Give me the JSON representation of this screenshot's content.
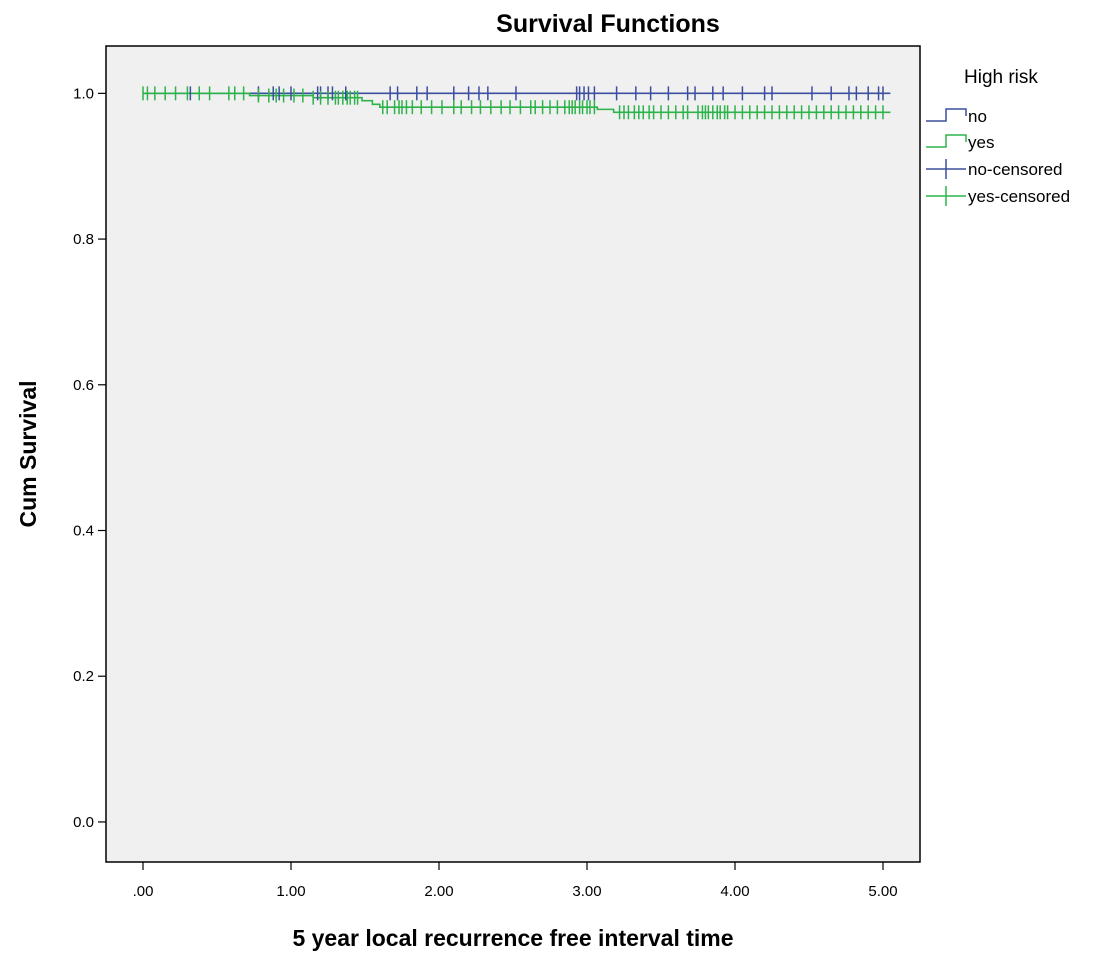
{
  "chart_data": {
    "type": "line",
    "title": "Survival Functions",
    "xlabel": "5 year local recurrence free interval time",
    "ylabel": "Cum Survival",
    "xlim": [
      -0.25,
      5.25
    ],
    "ylim": [
      -0.055,
      1.065
    ],
    "x_ticks": [
      0,
      1,
      2,
      3,
      4,
      5
    ],
    "x_tick_labels": [
      ".00",
      "1.00",
      "2.00",
      "3.00",
      "4.00",
      "5.00"
    ],
    "y_ticks": [
      0,
      0.2,
      0.4,
      0.6,
      0.8,
      1.0
    ],
    "y_tick_labels": [
      "0.0",
      "0.2",
      "0.4",
      "0.6",
      "0.8",
      "1.0"
    ],
    "grid": false,
    "legend": {
      "title": "High risk",
      "position": "right",
      "entries": [
        {
          "label": "no",
          "kind": "step",
          "color": "#3b4f9e"
        },
        {
          "label": "yes",
          "kind": "step",
          "color": "#2db34a"
        },
        {
          "label": "no-censored",
          "kind": "cross",
          "color": "#3b4f9e"
        },
        {
          "label": "yes-censored",
          "kind": "cross",
          "color": "#2db34a"
        }
      ]
    },
    "series": [
      {
        "name": "no",
        "color": "#3b4f9e",
        "steps": [
          [
            0,
            1.0
          ],
          [
            5.05,
            1.0
          ]
        ],
        "censored": [
          0.32,
          0.78,
          0.88,
          0.92,
          1.0,
          1.18,
          1.2,
          1.25,
          1.28,
          1.37,
          1.67,
          1.72,
          1.85,
          1.92,
          2.1,
          2.2,
          2.27,
          2.33,
          2.52,
          2.93,
          2.95,
          2.98,
          3.01,
          3.05,
          3.2,
          3.33,
          3.43,
          3.55,
          3.68,
          3.73,
          3.85,
          3.92,
          4.05,
          4.2,
          4.25,
          4.52,
          4.65,
          4.77,
          4.82,
          4.9,
          4.97,
          5.0
        ]
      },
      {
        "name": "yes",
        "color": "#2db34a",
        "steps": [
          [
            0,
            1.0
          ],
          [
            0.72,
            0.997
          ],
          [
            1.15,
            0.994
          ],
          [
            1.48,
            0.99
          ],
          [
            1.55,
            0.985
          ],
          [
            1.6,
            0.981
          ],
          [
            3.07,
            0.978
          ],
          [
            3.18,
            0.974
          ],
          [
            5.05,
            0.974
          ]
        ],
        "censored": [
          0.0,
          0.03,
          0.08,
          0.15,
          0.22,
          0.3,
          0.38,
          0.45,
          0.58,
          0.62,
          0.68,
          0.78,
          0.85,
          0.9,
          0.95,
          1.02,
          1.08,
          1.15,
          1.2,
          1.25,
          1.3,
          1.32,
          1.35,
          1.38,
          1.4,
          1.43,
          1.45,
          1.62,
          1.65,
          1.7,
          1.73,
          1.75,
          1.78,
          1.82,
          1.88,
          1.95,
          2.02,
          2.1,
          2.15,
          2.22,
          2.28,
          2.35,
          2.42,
          2.48,
          2.55,
          2.62,
          2.65,
          2.7,
          2.75,
          2.8,
          2.85,
          2.88,
          2.9,
          2.92,
          2.95,
          2.97,
          3.0,
          3.02,
          3.05,
          3.22,
          3.25,
          3.28,
          3.32,
          3.35,
          3.38,
          3.42,
          3.45,
          3.5,
          3.55,
          3.6,
          3.65,
          3.68,
          3.75,
          3.78,
          3.8,
          3.82,
          3.85,
          3.88,
          3.9,
          3.93,
          3.95,
          4.0,
          4.05,
          4.1,
          4.15,
          4.2,
          4.25,
          4.3,
          4.35,
          4.4,
          4.45,
          4.5,
          4.55,
          4.6,
          4.65,
          4.7,
          4.75,
          4.8,
          4.85,
          4.9,
          4.95,
          5.0
        ]
      }
    ]
  }
}
